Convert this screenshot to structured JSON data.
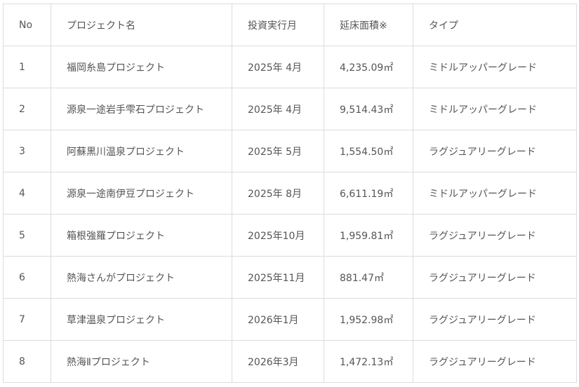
{
  "table": {
    "headers": [
      "No",
      "プロジェクト名",
      "投資実行月",
      "延床面積※",
      "タイプ"
    ],
    "rows": [
      [
        "1",
        "福岡糸島プロジェクト",
        "2025年 4月",
        "4,235.09㎡",
        "ミドルアッパーグレード"
      ],
      [
        "2",
        "源泉一途岩手雫石プロジェクト",
        "2025年 4月",
        "9,514.43㎡",
        "ミドルアッパーグレード"
      ],
      [
        "3",
        "阿蘇黒川温泉プロジェクト",
        "2025年 5月",
        "1,554.50㎡",
        "ラグジュアリーグレード"
      ],
      [
        "4",
        "源泉一途南伊豆プロジェクト",
        "2025年 8月",
        "6,611.19㎡",
        "ミドルアッパーグレード"
      ],
      [
        "5",
        "箱根強羅プロジェクト",
        "2025年10月",
        "1,959.81㎡",
        "ラグジュアリーグレード"
      ],
      [
        "6",
        "熱海さんがプロジェクト",
        "2025年11月",
        "881.47㎡",
        "ラグジュアリーグレード"
      ],
      [
        "7",
        "草津温泉プロジェクト",
        "2026年1月",
        "1,952.98㎡",
        "ラグジュアリーグレード"
      ],
      [
        "8",
        "熱海Ⅱプロジェクト",
        "2026年3月",
        "1,472.13㎡",
        "ラグジュアリーグレード"
      ]
    ]
  }
}
